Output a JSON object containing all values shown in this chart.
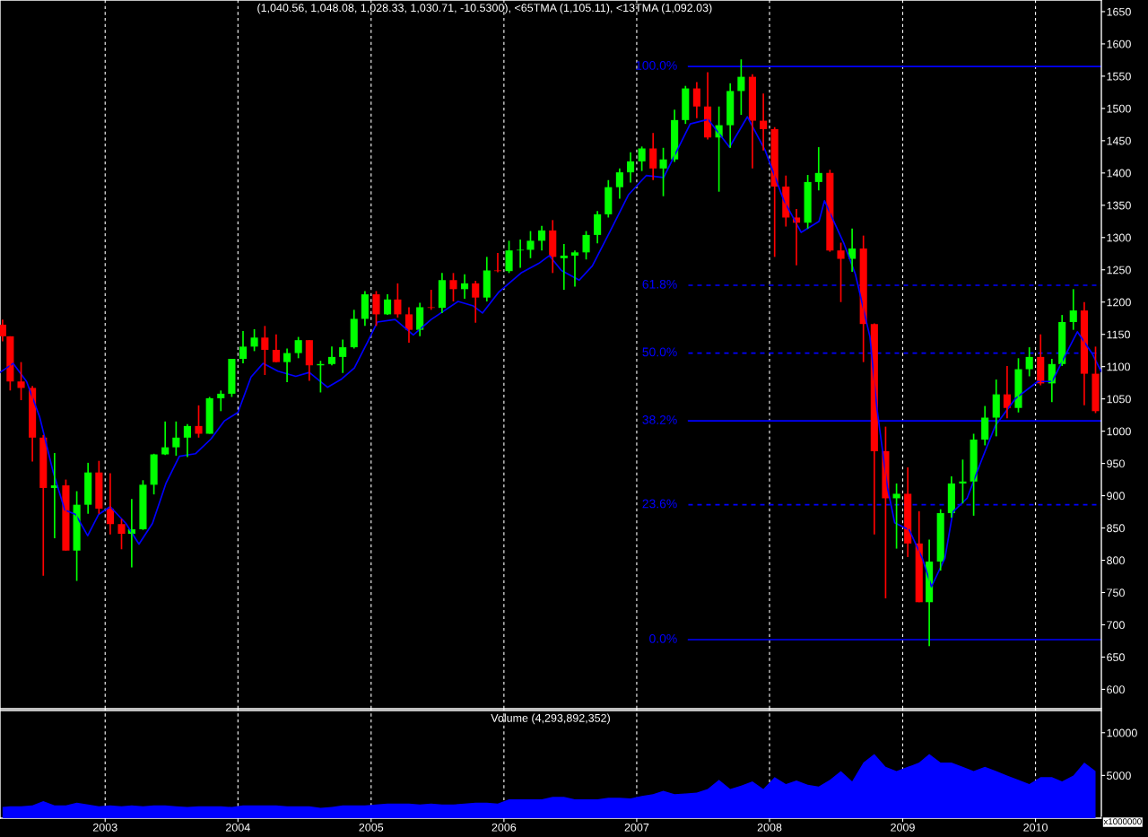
{
  "chart_data": [
    {
      "type": "candlestick",
      "title": "(1,040.56, 1,048.08, 1,028.33, 1,030.71, -10.5300), <65TMA (1,105.11), <13TMA (1,092.03)",
      "x": [
        "2002-03-25",
        "2002-04-15",
        "2002-05-15",
        "2002-06-15",
        "2002-07-15",
        "2002-08-15",
        "2002-09-15",
        "2002-10-15",
        "2002-11-15",
        "2002-12-15",
        "2003-01-15",
        "2003-02-15",
        "2003-03-15",
        "2003-04-15",
        "2003-05-15",
        "2003-06-15",
        "2003-07-15",
        "2003-08-15",
        "2003-09-15",
        "2003-10-15",
        "2003-11-15",
        "2003-12-15",
        "2004-01-15",
        "2004-02-15",
        "2004-03-15",
        "2004-04-15",
        "2004-05-15",
        "2004-06-15",
        "2004-07-15",
        "2004-08-15",
        "2004-09-15",
        "2004-10-15",
        "2004-11-15",
        "2004-12-15",
        "2005-01-15",
        "2005-02-15",
        "2005-03-15",
        "2005-04-15",
        "2005-05-15",
        "2005-06-15",
        "2005-07-15",
        "2005-08-15",
        "2005-09-15",
        "2005-10-15",
        "2005-11-15",
        "2005-12-15",
        "2006-01-15",
        "2006-02-15",
        "2006-03-15",
        "2006-04-15",
        "2006-05-15",
        "2006-06-15",
        "2006-07-15",
        "2006-08-15",
        "2006-09-15",
        "2006-10-15",
        "2006-11-15",
        "2006-12-15",
        "2007-01-15",
        "2007-02-15",
        "2007-03-15",
        "2007-04-15",
        "2007-05-15",
        "2007-06-15",
        "2007-07-15",
        "2007-08-15",
        "2007-09-15",
        "2007-10-15",
        "2007-11-15",
        "2007-12-15",
        "2008-01-15",
        "2008-02-15",
        "2008-03-15",
        "2008-04-15",
        "2008-05-15",
        "2008-06-15",
        "2008-07-15",
        "2008-08-15",
        "2008-09-15",
        "2008-10-15",
        "2008-11-15",
        "2008-12-15",
        "2009-01-15",
        "2009-02-15",
        "2009-03-15",
        "2009-04-15",
        "2009-05-15",
        "2009-06-15",
        "2009-07-15",
        "2009-08-15",
        "2009-09-15",
        "2009-10-15",
        "2009-11-15",
        "2009-12-15",
        "2010-01-15",
        "2010-02-15",
        "2010-03-15",
        "2010-04-15",
        "2010-05-15",
        "2010-06-15"
      ],
      "ohlc": [
        [
          1165,
          1173,
          1139,
          1147
        ],
        [
          1147,
          1147,
          1063,
          1077
        ],
        [
          1077,
          1107,
          1048,
          1067
        ],
        [
          1067,
          1070,
          953,
          990
        ],
        [
          990,
          994,
          776,
          912
        ],
        [
          912,
          966,
          834,
          916
        ],
        [
          916,
          925,
          815,
          815
        ],
        [
          815,
          907,
          768,
          886
        ],
        [
          886,
          951,
          872,
          936
        ],
        [
          936,
          954,
          872,
          880
        ],
        [
          880,
          935,
          840,
          856
        ],
        [
          856,
          864,
          817,
          841
        ],
        [
          841,
          895,
          789,
          848
        ],
        [
          848,
          924,
          847,
          917
        ],
        [
          917,
          965,
          902,
          964
        ],
        [
          964,
          1015,
          963,
          975
        ],
        [
          975,
          1015,
          962,
          990
        ],
        [
          990,
          1011,
          960,
          1008
        ],
        [
          1008,
          1040,
          990,
          996
        ],
        [
          996,
          1053,
          996,
          1051
        ],
        [
          1051,
          1063,
          1031,
          1058
        ],
        [
          1058,
          1112,
          1053,
          1112
        ],
        [
          1112,
          1155,
          1105,
          1131
        ],
        [
          1131,
          1158,
          1124,
          1145
        ],
        [
          1145,
          1163,
          1087,
          1126
        ],
        [
          1126,
          1150,
          1107,
          1107
        ],
        [
          1107,
          1128,
          1076,
          1121
        ],
        [
          1121,
          1146,
          1113,
          1141
        ],
        [
          1141,
          1141,
          1078,
          1102
        ],
        [
          1102,
          1109,
          1060,
          1104
        ],
        [
          1104,
          1131,
          1102,
          1115
        ],
        [
          1115,
          1142,
          1090,
          1130
        ],
        [
          1130,
          1188,
          1128,
          1174
        ],
        [
          1174,
          1217,
          1163,
          1212
        ],
        [
          1212,
          1217,
          1163,
          1181
        ],
        [
          1181,
          1212,
          1180,
          1204
        ],
        [
          1204,
          1229,
          1176,
          1181
        ],
        [
          1181,
          1192,
          1137,
          1157
        ],
        [
          1157,
          1199,
          1147,
          1192
        ],
        [
          1192,
          1219,
          1188,
          1191
        ],
        [
          1191,
          1245,
          1183,
          1234
        ],
        [
          1234,
          1245,
          1201,
          1220
        ],
        [
          1220,
          1243,
          1205,
          1229
        ],
        [
          1229,
          1233,
          1168,
          1207
        ],
        [
          1207,
          1270,
          1201,
          1249
        ],
        [
          1249,
          1276,
          1246,
          1248
        ],
        [
          1248,
          1295,
          1245,
          1280
        ],
        [
          1280,
          1297,
          1253,
          1281
        ],
        [
          1281,
          1310,
          1268,
          1295
        ],
        [
          1295,
          1318,
          1280,
          1311
        ],
        [
          1311,
          1327,
          1245,
          1270
        ],
        [
          1268,
          1290,
          1219,
          1272
        ],
        [
          1272,
          1280,
          1224,
          1277
        ],
        [
          1277,
          1310,
          1266,
          1304
        ],
        [
          1304,
          1341,
          1291,
          1336
        ],
        [
          1336,
          1389,
          1331,
          1378
        ],
        [
          1378,
          1407,
          1360,
          1401
        ],
        [
          1401,
          1432,
          1385,
          1418
        ],
        [
          1418,
          1441,
          1403,
          1438
        ],
        [
          1438,
          1462,
          1389,
          1407
        ],
        [
          1407,
          1439,
          1364,
          1421
        ],
        [
          1421,
          1498,
          1417,
          1482
        ],
        [
          1482,
          1535,
          1476,
          1531
        ],
        [
          1531,
          1541,
          1485,
          1503
        ],
        [
          1503,
          1556,
          1452,
          1455
        ],
        [
          1455,
          1503,
          1371,
          1474
        ],
        [
          1474,
          1539,
          1439,
          1527
        ],
        [
          1527,
          1576,
          1490,
          1549
        ],
        [
          1549,
          1553,
          1407,
          1481
        ],
        [
          1481,
          1523,
          1435,
          1468
        ],
        [
          1468,
          1471,
          1270,
          1379
        ],
        [
          1379,
          1396,
          1317,
          1331
        ],
        [
          1331,
          1344,
          1257,
          1323
        ],
        [
          1323,
          1397,
          1314,
          1386
        ],
        [
          1386,
          1440,
          1373,
          1400
        ],
        [
          1400,
          1405,
          1278,
          1280
        ],
        [
          1280,
          1292,
          1200,
          1267
        ],
        [
          1267,
          1314,
          1247,
          1283
        ],
        [
          1283,
          1303,
          1107,
          1166
        ],
        [
          1166,
          1167,
          840,
          969
        ],
        [
          969,
          1007,
          741,
          896
        ],
        [
          896,
          919,
          818,
          903
        ],
        [
          903,
          944,
          805,
          826
        ],
        [
          826,
          876,
          735,
          735
        ],
        [
          735,
          832,
          667,
          798
        ],
        [
          798,
          879,
          784,
          873
        ],
        [
          873,
          930,
          866,
          919
        ],
        [
          919,
          956,
          888,
          922
        ],
        [
          922,
          996,
          869,
          987
        ],
        [
          987,
          1039,
          978,
          1021
        ],
        [
          1021,
          1080,
          992,
          1057
        ],
        [
          1057,
          1101,
          1020,
          1036
        ],
        [
          1036,
          1113,
          1029,
          1096
        ],
        [
          1096,
          1130,
          1085,
          1115
        ],
        [
          1115,
          1150,
          1071,
          1074
        ],
        [
          1074,
          1112,
          1045,
          1104
        ],
        [
          1104,
          1180,
          1101,
          1169
        ],
        [
          1169,
          1220,
          1157,
          1187
        ],
        [
          1187,
          1200,
          1040,
          1089
        ],
        [
          1089,
          1131,
          1028,
          1031
        ]
      ],
      "colors": [
        "#ff0000",
        "#ff0000",
        "#ff0000",
        "#ff0000",
        "#ff0000",
        "#00ff00",
        "#ff0000",
        "#00ff00",
        "#00ff00",
        "#ff0000",
        "#ff0000",
        "#ff0000",
        "#00ff00",
        "#00ff00",
        "#00ff00",
        "#00ff00",
        "#00ff00",
        "#00ff00",
        "#ff0000",
        "#00ff00",
        "#00ff00",
        "#00ff00",
        "#00ff00",
        "#00ff00",
        "#ff0000",
        "#ff0000",
        "#00ff00",
        "#00ff00",
        "#ff0000",
        "#00ff00",
        "#00ff00",
        "#00ff00",
        "#00ff00",
        "#00ff00",
        "#ff0000",
        "#00ff00",
        "#ff0000",
        "#ff0000",
        "#00ff00",
        "#ff0000",
        "#00ff00",
        "#ff0000",
        "#00ff00",
        "#ff0000",
        "#00ff00",
        "#ff0000",
        "#00ff00",
        "#00ff00",
        "#00ff00",
        "#00ff00",
        "#ff0000",
        "#00ff00",
        "#00ff00",
        "#00ff00",
        "#00ff00",
        "#00ff00",
        "#00ff00",
        "#00ff00",
        "#00ff00",
        "#ff0000",
        "#00ff00",
        "#00ff00",
        "#00ff00",
        "#ff0000",
        "#ff0000",
        "#00ff00",
        "#00ff00",
        "#00ff00",
        "#ff0000",
        "#ff0000",
        "#ff0000",
        "#ff0000",
        "#ff0000",
        "#00ff00",
        "#00ff00",
        "#ff0000",
        "#ff0000",
        "#00ff00",
        "#ff0000",
        "#ff0000",
        "#ff0000",
        "#00ff00",
        "#ff0000",
        "#ff0000",
        "#00ff00",
        "#00ff00",
        "#00ff00",
        "#00ff00",
        "#00ff00",
        "#00ff00",
        "#00ff00",
        "#ff0000",
        "#00ff00",
        "#00ff00",
        "#ff0000",
        "#00ff00",
        "#00ff00",
        "#00ff00",
        "#ff0000",
        "#ff0000"
      ],
      "series": [
        {
          "type": "line",
          "color": "#0000ff",
          "x": [
            "2002-03-18",
            "2002-04-23",
            "2002-05-30",
            "2002-07-05",
            "2002-08-11",
            "2002-09-12",
            "2002-10-12",
            "2002-11-14",
            "2002-12-14",
            "2003-01-15",
            "2003-02-27",
            "2003-04-04",
            "2003-05-11",
            "2003-06-17",
            "2003-07-24",
            "2003-09-06",
            "2003-10-19",
            "2003-11-25",
            "2004-01-01",
            "2004-02-06",
            "2004-03-10",
            "2004-04-20",
            "2004-06-08",
            "2004-07-15",
            "2004-09-03",
            "2004-10-10",
            "2004-11-16",
            "2004-12-23",
            "2005-01-18",
            "2005-03-08",
            "2005-04-27",
            "2005-06-15",
            "2005-08-28",
            "2005-10-09",
            "2005-11-03",
            "2005-12-17",
            "2006-02-17",
            "2006-04-07",
            "2006-05-06",
            "2006-06-08",
            "2006-07-27",
            "2006-09-01",
            "2006-10-21",
            "2006-12-09",
            "2007-01-27",
            "2007-03-16",
            "2007-05-28",
            "2007-07-16",
            "2007-09-13",
            "2007-11-01",
            "2007-12-20",
            "2008-02-08",
            "2008-03-28",
            "2008-05-16",
            "2008-05-31",
            "2008-07-24",
            "2008-08-24",
            "2008-10-03",
            "2008-10-22",
            "2008-11-20",
            "2008-12-10",
            "2009-01-19",
            "2009-02-24",
            "2009-03-21",
            "2009-04-27",
            "2009-05-19",
            "2009-06-27",
            "2009-08-05",
            "2009-09-13",
            "2009-11-06",
            "2010-01-07",
            "2010-02-16",
            "2010-04-06",
            "2010-04-26",
            "2010-06-06",
            "2010-07-01"
          ],
          "values": [
            1091,
            1105,
            1077,
            1022,
            937,
            878,
            871,
            838,
            871,
            883,
            857,
            825,
            857,
            919,
            961,
            965,
            988,
            1016,
            1029,
            1084,
            1105,
            1093,
            1085,
            1091,
            1068,
            1080,
            1098,
            1139,
            1169,
            1173,
            1149,
            1173,
            1201,
            1194,
            1183,
            1215,
            1245,
            1260,
            1272,
            1249,
            1234,
            1256,
            1311,
            1366,
            1396,
            1393,
            1476,
            1483,
            1440,
            1487,
            1435,
            1359,
            1308,
            1325,
            1357,
            1290,
            1243,
            1146,
            1036,
            913,
            858,
            847,
            803,
            759,
            803,
            875,
            896,
            954,
            1009,
            1050,
            1077,
            1077,
            1132,
            1154,
            1120,
            1092
          ]
        }
      ],
      "ref_lines": [
        {
          "axis": "y",
          "value": 1565,
          "color": "#0000ff",
          "line_style": "solid"
        },
        {
          "axis": "y",
          "value": 1226,
          "color": "#0000ff",
          "line_style": "dashed"
        },
        {
          "axis": "y",
          "value": 1121,
          "color": "#0000ff",
          "line_style": "dashed"
        },
        {
          "axis": "y",
          "value": 1016,
          "color": "#0000ff",
          "line_style": "solid"
        },
        {
          "axis": "y",
          "value": 886,
          "color": "#0000ff",
          "line_style": "dashed"
        },
        {
          "axis": "y",
          "value": 677,
          "color": "#0000ff",
          "line_style": "solid"
        }
      ],
      "annotations": [
        "100.0%",
        "61.8%",
        "50.0%",
        "38.2%",
        "23.6%",
        "0.0%"
      ],
      "xlim": [
        "2002-03-18",
        "2010-07-01"
      ],
      "xticks": [
        {
          "value": "2003-01-01",
          "label": null
        },
        {
          "value": "2004-01-01",
          "label": null
        },
        {
          "value": "2005-01-01",
          "label": null
        },
        {
          "value": "2006-01-01",
          "label": null
        },
        {
          "value": "2007-01-01",
          "label": null
        },
        {
          "value": "2008-01-01",
          "label": null
        },
        {
          "value": "2009-01-01",
          "label": null
        },
        {
          "value": "2010-01-01",
          "label": null
        }
      ],
      "ylim": [
        570,
        1668
      ],
      "yticks": [
        600,
        650,
        700,
        750,
        800,
        850,
        900,
        950,
        1000,
        1050,
        1100,
        1150,
        1200,
        1250,
        1300,
        1350,
        1400,
        1450,
        1500,
        1550,
        1600,
        1650
      ],
      "grid": "x",
      "tick_labels": "y"
    },
    {
      "type": "area",
      "title": "Volume (4,293,892,352)",
      "color": "#0000ff",
      "x": [
        "2002-03-25",
        "2002-04-15",
        "2002-05-15",
        "2002-06-15",
        "2002-07-15",
        "2002-08-15",
        "2002-09-15",
        "2002-10-15",
        "2002-11-15",
        "2002-12-15",
        "2003-01-15",
        "2003-02-15",
        "2003-03-15",
        "2003-04-15",
        "2003-05-15",
        "2003-06-15",
        "2003-07-15",
        "2003-08-15",
        "2003-09-15",
        "2003-10-15",
        "2003-11-15",
        "2003-12-15",
        "2004-01-15",
        "2004-02-15",
        "2004-03-15",
        "2004-04-15",
        "2004-05-15",
        "2004-06-15",
        "2004-07-15",
        "2004-08-15",
        "2004-09-15",
        "2004-10-15",
        "2004-11-15",
        "2004-12-15",
        "2005-01-15",
        "2005-02-15",
        "2005-03-15",
        "2005-04-15",
        "2005-05-15",
        "2005-06-15",
        "2005-07-15",
        "2005-08-15",
        "2005-09-15",
        "2005-10-15",
        "2005-11-15",
        "2005-12-15",
        "2006-01-15",
        "2006-02-15",
        "2006-03-15",
        "2006-04-15",
        "2006-05-15",
        "2006-06-15",
        "2006-07-15",
        "2006-08-15",
        "2006-09-15",
        "2006-10-15",
        "2006-11-15",
        "2006-12-15",
        "2007-01-15",
        "2007-02-15",
        "2007-03-15",
        "2007-04-15",
        "2007-05-15",
        "2007-06-15",
        "2007-07-15",
        "2007-08-15",
        "2007-09-15",
        "2007-10-15",
        "2007-11-15",
        "2007-12-15",
        "2008-01-15",
        "2008-02-15",
        "2008-03-15",
        "2008-04-15",
        "2008-05-15",
        "2008-06-15",
        "2008-07-15",
        "2008-08-15",
        "2008-09-15",
        "2008-10-15",
        "2008-11-15",
        "2008-12-15",
        "2009-01-15",
        "2009-02-15",
        "2009-03-15",
        "2009-04-15",
        "2009-05-15",
        "2009-06-15",
        "2009-07-15",
        "2009-08-15",
        "2009-09-15",
        "2009-10-15",
        "2009-11-15",
        "2009-12-15",
        "2010-01-15",
        "2010-02-15",
        "2010-03-15",
        "2010-04-15",
        "2010-05-15",
        "2010-06-15"
      ],
      "values": [
        1300,
        1400,
        1400,
        1500,
        2000,
        1500,
        1500,
        1800,
        1600,
        1400,
        1500,
        1400,
        1500,
        1400,
        1500,
        1500,
        1400,
        1300,
        1400,
        1400,
        1400,
        1300,
        1500,
        1500,
        1500,
        1500,
        1400,
        1400,
        1400,
        1200,
        1300,
        1500,
        1500,
        1500,
        1600,
        1700,
        1700,
        1700,
        1600,
        1700,
        1600,
        1600,
        1700,
        1800,
        1800,
        1700,
        2200,
        2200,
        2200,
        2200,
        2500,
        2500,
        2200,
        2200,
        2200,
        2400,
        2400,
        2300,
        2600,
        2800,
        3200,
        2800,
        2900,
        3000,
        3400,
        4500,
        3400,
        3800,
        4300,
        3400,
        4800,
        4000,
        4400,
        3900,
        3700,
        4500,
        5500,
        4300,
        6500,
        7500,
        6000,
        5500,
        6000,
        6500,
        7500,
        6500,
        6500,
        6000,
        5500,
        6000,
        5500,
        5000,
        4500,
        4000,
        4800,
        4800,
        4300,
        5000,
        6500,
        5500
      ],
      "xlim": [
        "2002-03-18",
        "2010-07-01"
      ],
      "xticks": [
        {
          "value": "2003-01-01",
          "label": "2003"
        },
        {
          "value": "2004-01-01",
          "label": "2004"
        },
        {
          "value": "2005-01-01",
          "label": "2005"
        },
        {
          "value": "2006-01-01",
          "label": "2006"
        },
        {
          "value": "2007-01-01",
          "label": "2007"
        },
        {
          "value": "2008-01-01",
          "label": "2008"
        },
        {
          "value": "2009-01-01",
          "label": "2009"
        },
        {
          "value": "2010-01-01",
          "label": "2010"
        }
      ],
      "ylim": [
        0,
        12600
      ],
      "yticks": [
        5000,
        10000
      ],
      "annotations": [
        "x1000000"
      ],
      "grid": "x"
    }
  ]
}
